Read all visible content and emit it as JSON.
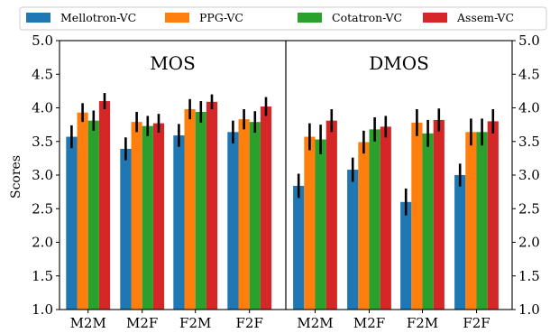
{
  "chart_data": {
    "type": "bar",
    "ylabel": "Scores",
    "ylim": [
      1.0,
      5.0
    ],
    "yticks": [
      "1.0",
      "1.5",
      "2.0",
      "2.5",
      "3.0",
      "3.5",
      "4.0",
      "4.5",
      "5.0"
    ],
    "grid": false,
    "legend_position": "top",
    "categories": [
      "M2M",
      "M2F",
      "F2M",
      "F2F"
    ],
    "series": [
      {
        "name": "Mellotron-VC",
        "color": "#1f77b4"
      },
      {
        "name": "PPG-VC",
        "color": "#ff7f0e"
      },
      {
        "name": "Cotatron-VC",
        "color": "#2ca02c"
      },
      {
        "name": "Assem-VC",
        "color": "#d62728"
      }
    ],
    "panels": [
      {
        "title": "MOS",
        "values": [
          [
            3.57,
            3.39,
            3.59,
            3.64
          ],
          [
            3.93,
            3.79,
            3.98,
            3.83
          ],
          [
            3.81,
            3.73,
            3.94,
            3.79
          ],
          [
            4.1,
            3.77,
            4.09,
            4.02
          ]
        ],
        "errors": [
          [
            0.17,
            0.17,
            0.17,
            0.17
          ],
          [
            0.14,
            0.15,
            0.15,
            0.15
          ],
          [
            0.15,
            0.15,
            0.16,
            0.16
          ],
          [
            0.12,
            0.14,
            0.11,
            0.14
          ]
        ]
      },
      {
        "title": "DMOS",
        "values": [
          [
            2.84,
            3.08,
            2.6,
            3.0
          ],
          [
            3.57,
            3.49,
            3.78,
            3.64
          ],
          [
            3.53,
            3.68,
            3.62,
            3.64
          ],
          [
            3.81,
            3.72,
            3.82,
            3.8
          ]
        ],
        "errors": [
          [
            0.18,
            0.18,
            0.2,
            0.17
          ],
          [
            0.2,
            0.17,
            0.2,
            0.2
          ],
          [
            0.22,
            0.18,
            0.2,
            0.2
          ],
          [
            0.17,
            0.16,
            0.17,
            0.18
          ]
        ]
      }
    ]
  }
}
